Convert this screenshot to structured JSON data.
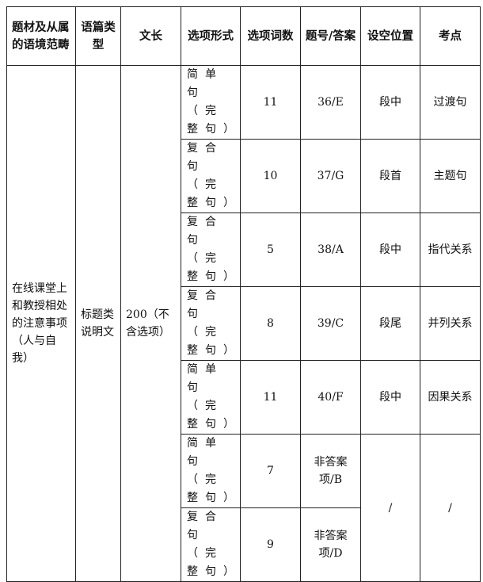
{
  "headers": [
    "题材及从属的语境范畴",
    "语篇类型",
    "文长",
    "选项形式",
    "选项词数",
    "题号/答案",
    "设空位置",
    "考点"
  ],
  "merged": {
    "topic": "在线课堂上和教授相处的注意事项（人与自我）",
    "genre": "标题类说明文",
    "length": "200（不含选项）"
  },
  "rows": [
    {
      "form": "简单句（完整句）",
      "words": "11",
      "answer": "36/E",
      "position": "段中",
      "point": "过渡句"
    },
    {
      "form": "复合句（完整句）",
      "words": "10",
      "answer": "37/G",
      "position": "段首",
      "point": "主题句"
    },
    {
      "form": "复合句（完整句）",
      "words": "5",
      "answer": "38/A",
      "position": "段中",
      "point": "指代关系"
    },
    {
      "form": "复合句（完整句）",
      "words": "8",
      "answer": "39/C",
      "position": "段尾",
      "point": "并列关系"
    },
    {
      "form": "简单句（完整句）",
      "words": "11",
      "answer": "40/F",
      "position": "段中",
      "point": "因果关系"
    },
    {
      "form": "简单句（完整句）",
      "words": "7",
      "answer": "非答案项/B"
    },
    {
      "form": "复合句（完整句）",
      "words": "9",
      "answer": "非答案项/D"
    }
  ],
  "non_answer_position": "/",
  "non_answer_point": "/"
}
